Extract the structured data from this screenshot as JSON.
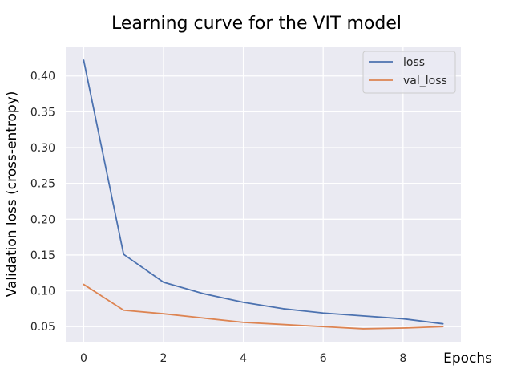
{
  "chart_data": {
    "type": "line",
    "title": "Learning curve for the VIT model",
    "xlabel": "Epochs",
    "ylabel": "Validation loss (cross-entropy)",
    "x": [
      0,
      1,
      2,
      3,
      4,
      5,
      6,
      7,
      8,
      9
    ],
    "xlim": [
      -0.45,
      9.45
    ],
    "ylim": [
      0.029,
      0.44
    ],
    "xticks": [
      0,
      2,
      4,
      6,
      8
    ],
    "xtick_labels": [
      "0",
      "2",
      "4",
      "6",
      "8"
    ],
    "yticks": [
      0.05,
      0.1,
      0.15,
      0.2,
      0.25,
      0.3,
      0.35,
      0.4
    ],
    "ytick_labels": [
      "0.05",
      "0.10",
      "0.15",
      "0.20",
      "0.25",
      "0.30",
      "0.35",
      "0.40"
    ],
    "grid": true,
    "legend_position": "top-right",
    "series": [
      {
        "name": "loss",
        "color": "#4c72b0",
        "values": [
          0.422,
          0.151,
          0.112,
          0.096,
          0.084,
          0.075,
          0.069,
          0.065,
          0.061,
          0.054
        ]
      },
      {
        "name": "val_loss",
        "color": "#dd8452",
        "values": [
          0.109,
          0.073,
          0.068,
          0.062,
          0.056,
          0.053,
          0.05,
          0.047,
          0.048,
          0.05
        ]
      }
    ]
  },
  "colors": {
    "plot_background": "#eaeaf2",
    "grid": "#ffffff",
    "tick_text": "#262626"
  }
}
